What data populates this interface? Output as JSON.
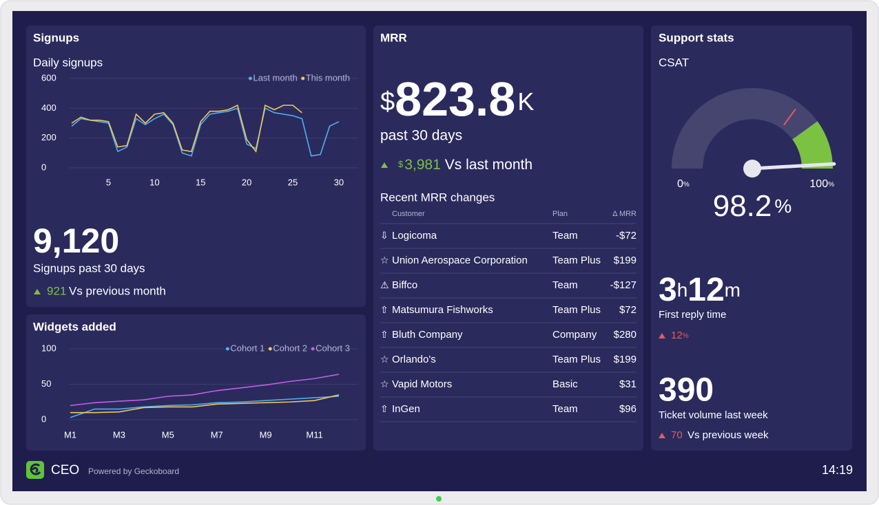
{
  "header": {
    "logo_text": "CEO",
    "powered_by": "Powered by Geckoboard",
    "time": "14:19"
  },
  "signups": {
    "title": "Signups",
    "chart": {
      "type": "line",
      "subtitle": "Daily signups",
      "x": [
        1,
        2,
        3,
        4,
        5,
        6,
        7,
        8,
        9,
        10,
        11,
        12,
        13,
        14,
        15,
        16,
        17,
        18,
        19,
        20,
        21,
        22,
        23,
        24,
        25,
        26,
        27,
        28,
        29,
        30
      ],
      "series": [
        {
          "name": "Last month",
          "color": "#4fb0f0",
          "values": [
            280,
            330,
            320,
            310,
            300,
            110,
            140,
            330,
            290,
            330,
            360,
            290,
            100,
            80,
            290,
            360,
            370,
            380,
            400,
            160,
            130,
            400,
            370,
            360,
            350,
            330,
            80,
            90,
            280,
            310
          ]
        },
        {
          "name": "This month",
          "color": "#f0c85a",
          "values": [
            300,
            340,
            320,
            320,
            310,
            140,
            150,
            360,
            300,
            360,
            370,
            300,
            120,
            110,
            310,
            380,
            380,
            390,
            420,
            190,
            110,
            420,
            390,
            420,
            420,
            370
          ]
        }
      ],
      "xlim": [
        0.7,
        32.1
      ],
      "xticks": [
        5,
        10,
        15,
        20,
        25,
        30
      ],
      "ylim": [
        0,
        600
      ],
      "yticks": [
        0,
        200,
        400,
        600
      ],
      "grid": true
    },
    "total": "9,120",
    "total_label": "Signups past 30 days",
    "change": "921",
    "change_label": "Vs previous month"
  },
  "widgets": {
    "title": "Widgets added",
    "chart": {
      "type": "line",
      "categories": [
        "M1",
        null,
        "M3",
        null,
        "M5",
        null,
        "M7",
        null,
        "M9",
        null,
        "M11",
        null
      ],
      "series": [
        {
          "name": "Cohort 1",
          "color": "#4fb0f0",
          "values": [
            3,
            15,
            15,
            18,
            20,
            21,
            24,
            25,
            27,
            29,
            31,
            33
          ]
        },
        {
          "name": "Cohort 2",
          "color": "#f0c85a",
          "values": [
            10,
            10,
            11,
            17,
            18,
            18,
            22,
            23,
            24,
            25,
            27,
            35
          ]
        },
        {
          "name": "Cohort 3",
          "color": "#c45ee8",
          "values": [
            20,
            24,
            26,
            28,
            33,
            35,
            41,
            45,
            49,
            54,
            58,
            64
          ]
        }
      ],
      "ylim": [
        0,
        100
      ],
      "yticks": [
        0,
        50,
        100
      ],
      "grid": true
    }
  },
  "mrr": {
    "title": "MRR",
    "currency": "$",
    "value": "823.8",
    "unit": "K",
    "period": "past 30 days",
    "change": {
      "currency": "$",
      "value": "3,981",
      "label": "Vs last month"
    },
    "table": {
      "title": "Recent MRR changes",
      "columns": [
        "Customer",
        "Plan",
        "Δ MRR"
      ],
      "rows": [
        [
          "⇩",
          "Logicoma",
          "Team",
          "-$72"
        ],
        [
          "☆",
          "Union Aerospace Corporation",
          "Team Plus",
          "$199"
        ],
        [
          "⚠",
          "Biffco",
          "Team",
          "-$127"
        ],
        [
          "⇧",
          "Matsumura Fishworks",
          "Team Plus",
          "$72"
        ],
        [
          "⇧",
          "Bluth Company",
          "Company",
          "$280"
        ],
        [
          "☆",
          "Orlando's",
          "Team Plus",
          "$199"
        ],
        [
          "☆",
          "Vapid Motors",
          "Basic",
          "$31"
        ],
        [
          "⇧",
          "InGen",
          "Team",
          "$96"
        ]
      ]
    }
  },
  "support": {
    "title": "Support stats",
    "gauge": {
      "label": "CSAT",
      "min": 0,
      "max": 100,
      "unit": "%",
      "value": 98.2,
      "marker": 70,
      "marker_color": "#e45b5b",
      "band_from": 80,
      "band_color": "#7cc242",
      "track_color": "#45456f"
    },
    "reply": {
      "hours": "3",
      "h": "h",
      "minutes": "12",
      "m": "m",
      "label": "First reply time",
      "change": "12",
      "unit": "%"
    },
    "tickets": {
      "value": "390",
      "label": "Ticket volume last week",
      "change": "70",
      "change_label": "Vs previous week"
    }
  }
}
